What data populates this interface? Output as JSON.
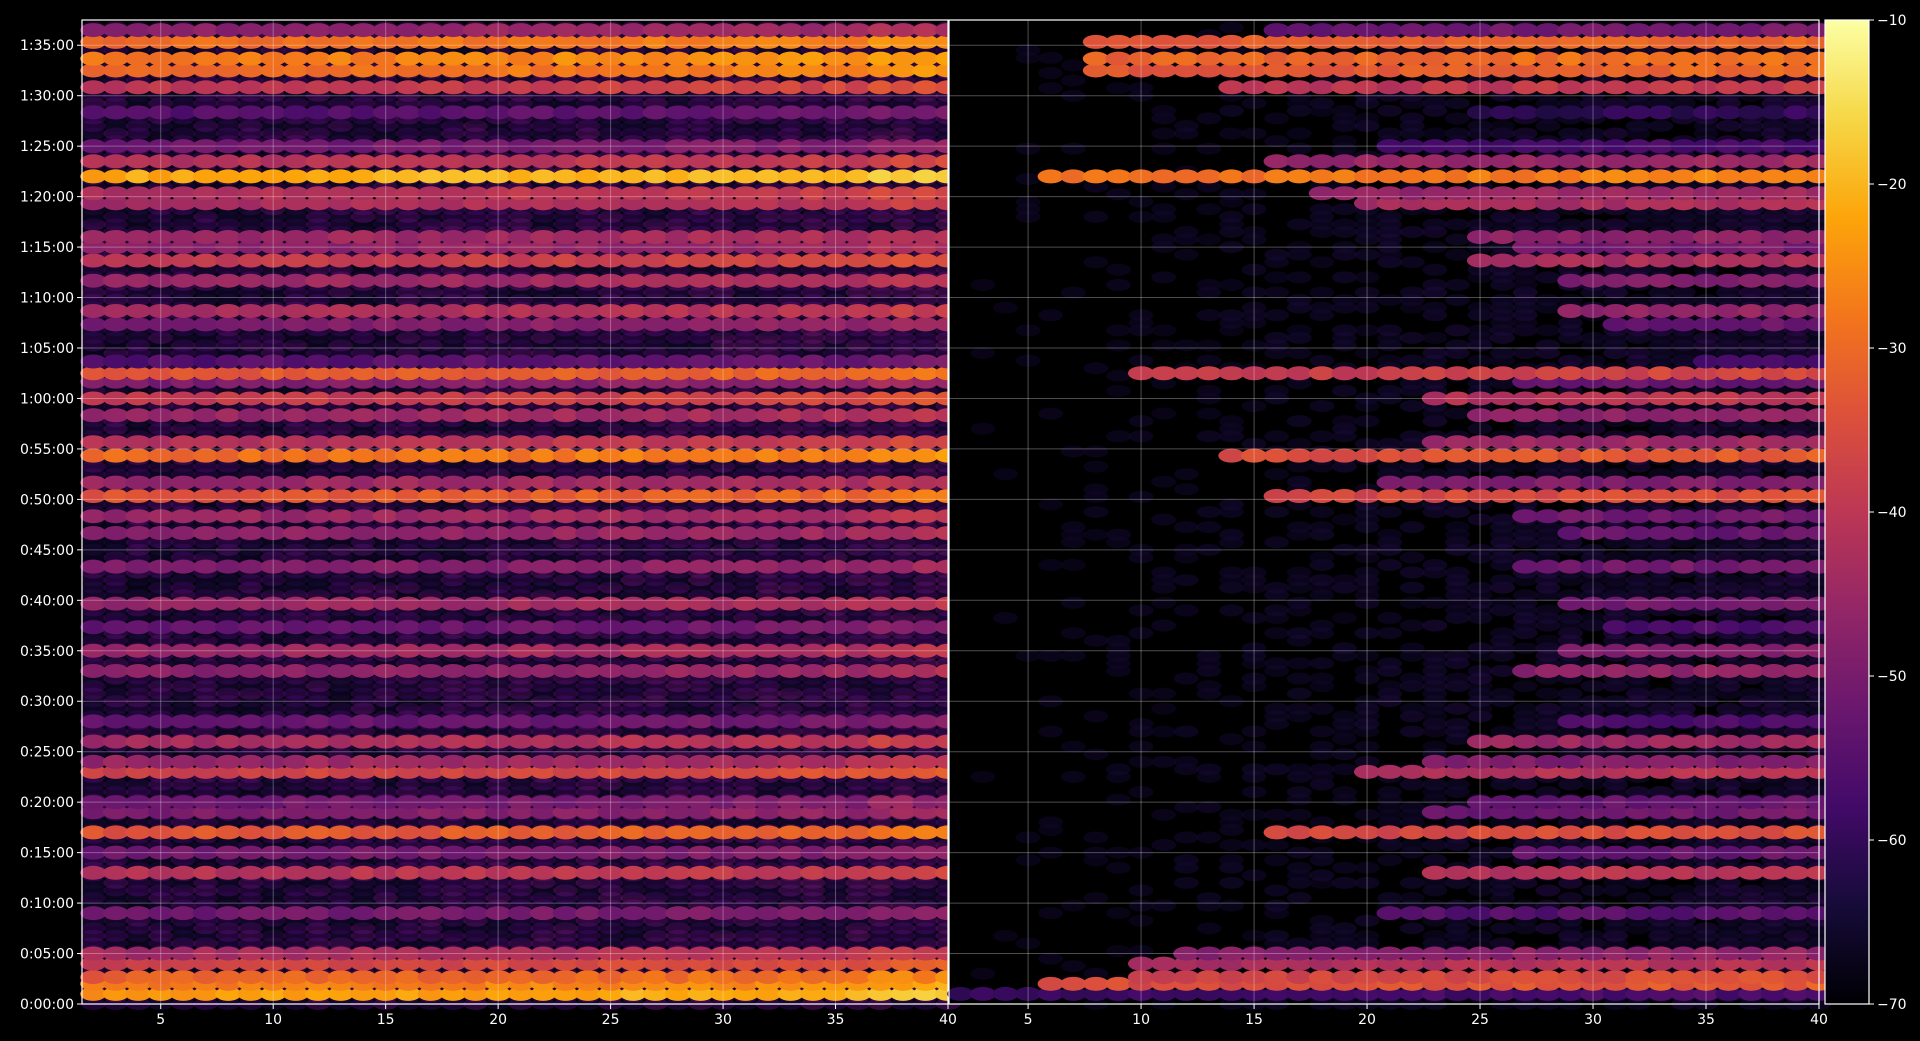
{
  "chart_data": [
    {
      "type": "heatmap",
      "panel": "left",
      "xlim": [
        1.5,
        40
      ],
      "ylim": [
        0,
        5850
      ],
      "xticks": [
        5,
        10,
        15,
        20,
        25,
        30,
        35,
        40
      ],
      "yticks": [
        0,
        300,
        600,
        900,
        1200,
        1500,
        1800,
        2100,
        2400,
        2700,
        3000,
        3300,
        3600,
        3900,
        4200,
        4500,
        4800,
        5100,
        5400,
        5700
      ],
      "ytick_labels": [
        "0:00:00",
        "0:05:00",
        "0:10:00",
        "0:15:00",
        "0:20:00",
        "0:25:00",
        "0:30:00",
        "0:35:00",
        "0:40:00",
        "0:45:00",
        "0:50:00",
        "0:55:00",
        "1:00:00",
        "1:05:00",
        "1:10:00",
        "1:15:00",
        "1:20:00",
        "1:25:00",
        "1:30:00",
        "1:35:00"
      ],
      "grid": true
    },
    {
      "type": "heatmap",
      "panel": "right",
      "xlim": [
        1.5,
        40
      ],
      "ylim": [
        0,
        5850
      ],
      "xticks": [
        5,
        10,
        15,
        20,
        25,
        30,
        35,
        40
      ],
      "grid": true
    }
  ],
  "colorbar": {
    "colormap": "inferno",
    "range": [
      -70,
      -10
    ],
    "ticks": [
      -10,
      -20,
      -30,
      -40,
      -50,
      -60,
      -70
    ],
    "tick_labels": [
      "−10",
      "−20",
      "−30",
      "−40",
      "−50",
      "−60",
      "−70"
    ]
  },
  "bands": [
    {
      "t": 60,
      "left": -24,
      "right": -60,
      "ramp": 0.0
    },
    {
      "t": 120,
      "left": -28,
      "right": -36,
      "ramp": 0.1
    },
    {
      "t": 160,
      "left": -32,
      "right": -38,
      "ramp": 0.2
    },
    {
      "t": 240,
      "left": -38,
      "right": -44,
      "ramp": 0.2
    },
    {
      "t": 300,
      "left": -44,
      "right": -50,
      "ramp": 0.25
    },
    {
      "t": 540,
      "left": -52,
      "right": -58,
      "ramp": 0.5
    },
    {
      "t": 780,
      "left": -42,
      "right": -44,
      "ramp": 0.55
    },
    {
      "t": 900,
      "left": -52,
      "right": -56,
      "ramp": 0.65
    },
    {
      "t": 1020,
      "left": -34,
      "right": -38,
      "ramp": 0.35
    },
    {
      "t": 1140,
      "left": -50,
      "right": -54,
      "ramp": 0.55
    },
    {
      "t": 1200,
      "left": -52,
      "right": -56,
      "ramp": 0.6
    },
    {
      "t": 1380,
      "left": -38,
      "right": -44,
      "ramp": 0.45
    },
    {
      "t": 1440,
      "left": -46,
      "right": -52,
      "ramp": 0.55
    },
    {
      "t": 1560,
      "left": -44,
      "right": -48,
      "ramp": 0.6
    },
    {
      "t": 1680,
      "left": -54,
      "right": -60,
      "ramp": 0.7
    },
    {
      "t": 1980,
      "left": -48,
      "right": -50,
      "ramp": 0.65
    },
    {
      "t": 2100,
      "left": -46,
      "right": -52,
      "ramp": 0.7
    },
    {
      "t": 2240,
      "left": -54,
      "right": -60,
      "ramp": 0.75
    },
    {
      "t": 2380,
      "left": -46,
      "right": -54,
      "ramp": 0.7
    },
    {
      "t": 2600,
      "left": -50,
      "right": -54,
      "ramp": 0.65
    },
    {
      "t": 2800,
      "left": -48,
      "right": -56,
      "ramp": 0.7
    },
    {
      "t": 2900,
      "left": -46,
      "right": -54,
      "ramp": 0.65
    },
    {
      "t": 3020,
      "left": -34,
      "right": -38,
      "ramp": 0.35
    },
    {
      "t": 3100,
      "left": -46,
      "right": -52,
      "ramp": 0.5
    },
    {
      "t": 3260,
      "left": -30,
      "right": -36,
      "ramp": 0.3
    },
    {
      "t": 3340,
      "left": -42,
      "right": -48,
      "ramp": 0.55
    },
    {
      "t": 3500,
      "left": -46,
      "right": -50,
      "ramp": 0.6
    },
    {
      "t": 3600,
      "left": -40,
      "right": -44,
      "ramp": 0.55
    },
    {
      "t": 3700,
      "left": -50,
      "right": -56,
      "ramp": 0.65
    },
    {
      "t": 3750,
      "left": -34,
      "right": -40,
      "ramp": 0.2
    },
    {
      "t": 3820,
      "left": -56,
      "right": -62,
      "ramp": 0.85
    },
    {
      "t": 4040,
      "left": -50,
      "right": -56,
      "ramp": 0.75
    },
    {
      "t": 4120,
      "left": -44,
      "right": -50,
      "ramp": 0.7
    },
    {
      "t": 4300,
      "left": -46,
      "right": -52,
      "ramp": 0.7
    },
    {
      "t": 4420,
      "left": -40,
      "right": -46,
      "ramp": 0.6
    },
    {
      "t": 4500,
      "left": -48,
      "right": -54,
      "ramp": 0.65
    },
    {
      "t": 4560,
      "left": -46,
      "right": -50,
      "ramp": 0.6
    },
    {
      "t": 4760,
      "left": -44,
      "right": -46,
      "ramp": 0.45
    },
    {
      "t": 4820,
      "left": -42,
      "right": -48,
      "ramp": 0.4
    },
    {
      "t": 4920,
      "left": -22,
      "right": -30,
      "ramp": 0.1
    },
    {
      "t": 5010,
      "left": -42,
      "right": -48,
      "ramp": 0.35
    },
    {
      "t": 5100,
      "left": -52,
      "right": -60,
      "ramp": 0.5
    },
    {
      "t": 5300,
      "left": -56,
      "right": -64,
      "ramp": 0.6
    },
    {
      "t": 5450,
      "left": -40,
      "right": -42,
      "ramp": 0.3
    },
    {
      "t": 5550,
      "left": -30,
      "right": -34,
      "ramp": 0.15
    },
    {
      "t": 5620,
      "left": -28,
      "right": -32,
      "ramp": 0.15
    },
    {
      "t": 5720,
      "left": -30,
      "right": -34,
      "ramp": 0.15
    },
    {
      "t": 5790,
      "left": -48,
      "right": -54,
      "ramp": 0.35
    }
  ]
}
